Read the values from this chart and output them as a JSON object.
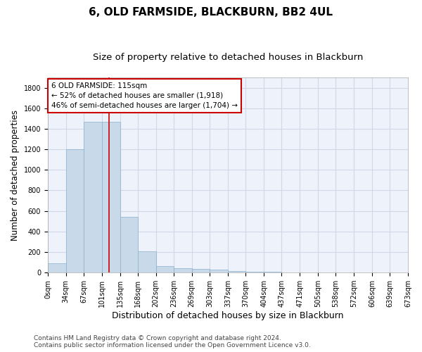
{
  "title": "6, OLD FARMSIDE, BLACKBURN, BB2 4UL",
  "subtitle": "Size of property relative to detached houses in Blackburn",
  "xlabel": "Distribution of detached houses by size in Blackburn",
  "ylabel": "Number of detached properties",
  "bin_edges": [
    0,
    34,
    67,
    101,
    135,
    168,
    202,
    236,
    269,
    303,
    337,
    370,
    404,
    437,
    471,
    505,
    538,
    572,
    606,
    639,
    673
  ],
  "bar_heights": [
    90,
    1200,
    1470,
    1465,
    540,
    205,
    65,
    45,
    35,
    28,
    15,
    8,
    5,
    3,
    2,
    1,
    1,
    0,
    0,
    0
  ],
  "bar_color": "#c8d9ea",
  "bar_edge_color": "#8ab0cc",
  "grid_color": "#d0d8e8",
  "background_color": "#eef2fa",
  "red_line_x": 115,
  "annotation_line1": "6 OLD FARMSIDE: 115sqm",
  "annotation_line2": "← 52% of detached houses are smaller (1,918)",
  "annotation_line3": "46% of semi-detached houses are larger (1,704) →",
  "annotation_box_color": "#ffffff",
  "annotation_border_color": "#cc0000",
  "footer_line1": "Contains HM Land Registry data © Crown copyright and database right 2024.",
  "footer_line2": "Contains public sector information licensed under the Open Government Licence v3.0.",
  "ylim": [
    0,
    1900
  ],
  "yticks": [
    0,
    200,
    400,
    600,
    800,
    1000,
    1200,
    1400,
    1600,
    1800
  ],
  "title_fontsize": 11,
  "subtitle_fontsize": 9.5,
  "tick_label_fontsize": 7,
  "ylabel_fontsize": 8.5,
  "xlabel_fontsize": 9,
  "annotation_fontsize": 7.5,
  "footer_fontsize": 6.5
}
